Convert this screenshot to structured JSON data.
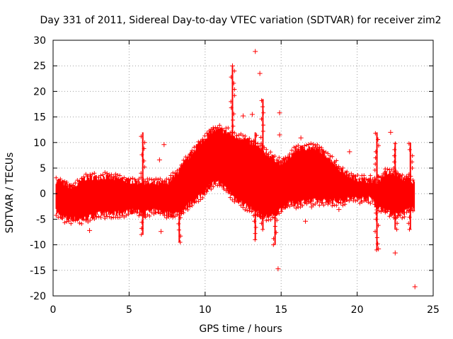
{
  "chart_data": {
    "type": "scatter",
    "title": "Day 331 of 2011, Sidereal Day-to-day VTEC variation (SDTVAR) for receiver zim2",
    "xlabel": "GPS time / hours",
    "ylabel": "SDTVAR / TECUs",
    "xlim": [
      0,
      25
    ],
    "ylim": [
      -20,
      30
    ],
    "xticks": [
      0,
      5,
      10,
      15,
      20,
      25
    ],
    "yticks": [
      -20,
      -15,
      -10,
      -5,
      0,
      5,
      10,
      15,
      20,
      25,
      30
    ],
    "grid": true,
    "marker": "+",
    "color": "#ff0000",
    "series": [
      {
        "name": "SDTVAR",
        "envelope": {
          "x": [
            0.2,
            0.5,
            1.0,
            1.5,
            2.0,
            2.5,
            3.0,
            3.5,
            4.0,
            4.5,
            5.0,
            5.5,
            5.9,
            6.3,
            7.0,
            7.5,
            8.0,
            8.5,
            9.0,
            9.5,
            10.0,
            10.5,
            11.0,
            11.5,
            12.0,
            12.5,
            13.0,
            13.5,
            14.0,
            14.5,
            15.0,
            15.5,
            16.0,
            16.5,
            17.0,
            17.5,
            18.0,
            18.5,
            19.0,
            19.5,
            20.0,
            20.5,
            21.0,
            21.4,
            21.8,
            22.2,
            22.6,
            23.0,
            23.4,
            23.8
          ],
          "upper": [
            2.5,
            2.5,
            1.5,
            1.5,
            3.0,
            3.2,
            3.2,
            3.3,
            3.0,
            2.9,
            2.5,
            2.3,
            2.5,
            2.0,
            2.0,
            2.2,
            3.5,
            5.5,
            7.5,
            9.5,
            11.0,
            12.5,
            12.5,
            12.0,
            11.0,
            11.0,
            10.0,
            9.0,
            8.0,
            7.0,
            6.0,
            7.0,
            8.8,
            9.0,
            9.0,
            8.7,
            7.5,
            6.0,
            4.5,
            3.5,
            3.0,
            2.7,
            2.6,
            2.5,
            4.0,
            4.0,
            4.0,
            3.0,
            3.0,
            2.0
          ],
          "lower": [
            -3.5,
            -4.5,
            -5.0,
            -5.0,
            -5.0,
            -4.5,
            -4.0,
            -4.0,
            -4.0,
            -3.8,
            -3.5,
            -3.5,
            -4.0,
            -3.5,
            -3.5,
            -4.0,
            -4.0,
            -3.5,
            -2.0,
            -1.0,
            0.5,
            2.0,
            2.0,
            0.5,
            -1.0,
            -2.0,
            -3.0,
            -4.0,
            -4.5,
            -4.5,
            -3.0,
            -2.0,
            -2.0,
            -1.5,
            -1.5,
            -1.5,
            -1.5,
            -1.5,
            -1.5,
            -1.0,
            -1.0,
            -1.0,
            -1.0,
            -3.0,
            -3.0,
            -4.0,
            -4.0,
            -4.0,
            -3.0,
            -3.0
          ]
        },
        "spikes": [
          {
            "x": 5.9,
            "low": -8.0,
            "high": 12.0
          },
          {
            "x": 8.3,
            "low": -9.5,
            "high": 1.0
          },
          {
            "x": 11.8,
            "low": 0.0,
            "high": 25.0
          },
          {
            "x": 13.3,
            "low": -9.0,
            "high": 12.0
          },
          {
            "x": 13.8,
            "low": -7.0,
            "high": 18.5
          },
          {
            "x": 14.6,
            "low": -10.0,
            "high": 6.0
          },
          {
            "x": 21.3,
            "low": -11.0,
            "high": 12.0
          },
          {
            "x": 22.5,
            "low": -7.0,
            "high": 10.0
          },
          {
            "x": 23.5,
            "low": -7.0,
            "high": 10.0
          }
        ],
        "outliers": [
          {
            "x": 13.3,
            "y": 27.8
          },
          {
            "x": 13.6,
            "y": 23.5
          },
          {
            "x": 11.8,
            "y": 25.0
          },
          {
            "x": 14.9,
            "y": 15.8
          },
          {
            "x": 14.9,
            "y": 11.5
          },
          {
            "x": 16.3,
            "y": 10.9
          },
          {
            "x": 14.8,
            "y": -14.7
          },
          {
            "x": 23.8,
            "y": -18.2
          },
          {
            "x": 22.5,
            "y": -11.6
          },
          {
            "x": 21.4,
            "y": -10.8
          },
          {
            "x": 2.4,
            "y": -7.2
          },
          {
            "x": 7.3,
            "y": 9.6
          },
          {
            "x": 13.1,
            "y": 15.5
          },
          {
            "x": 12.5,
            "y": 15.2
          },
          {
            "x": 19.5,
            "y": 8.2
          },
          {
            "x": 22.2,
            "y": 12.0
          },
          {
            "x": 16.6,
            "y": -5.4
          },
          {
            "x": 17.0,
            "y": -2.6
          },
          {
            "x": 18.8,
            "y": -3.1
          },
          {
            "x": 7.0,
            "y": 6.6
          },
          {
            "x": 7.1,
            "y": -7.4
          }
        ]
      }
    ]
  }
}
